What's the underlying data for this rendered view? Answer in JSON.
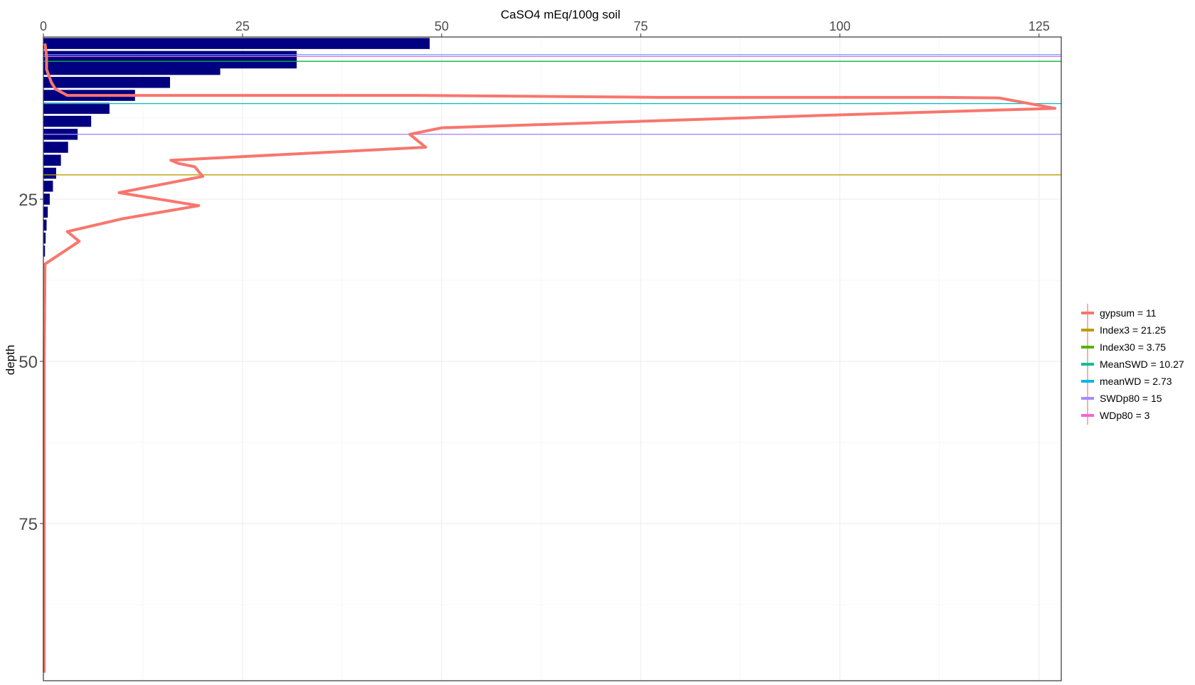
{
  "chart_data": {
    "type": "bar",
    "title": "CaSO4 mEq/100g soil",
    "ylabel": "depth",
    "xlabel": "",
    "xlim": [
      0,
      127
    ],
    "ylim": [
      0,
      100
    ],
    "y_reversed": true,
    "x_axis_position": "top",
    "x_ticks": [
      0,
      25,
      50,
      75,
      100,
      125
    ],
    "x_tick_labels": [
      "0",
      "25",
      "50",
      "75",
      "100",
      "125"
    ],
    "y_ticks": [
      25,
      50,
      75
    ],
    "y_tick_labels": [
      "25",
      "50",
      "75"
    ],
    "grid": true,
    "legend_position": "right",
    "bars": {
      "color": "#000080",
      "depth": [
        1,
        3,
        4,
        5,
        7,
        9,
        11,
        13,
        15,
        17,
        19,
        21,
        23,
        25,
        27,
        29,
        31,
        33
      ],
      "values": [
        48.5,
        31.8,
        31.8,
        22.2,
        15.9,
        11.5,
        8.3,
        6.0,
        4.3,
        3.1,
        2.2,
        1.6,
        1.2,
        0.8,
        0.55,
        0.4,
        0.28,
        0.2
      ]
    },
    "series": [
      {
        "name": "gypsum = 11",
        "color": "#F8766D",
        "kind": "profile",
        "points": [
          [
            0.2,
            1
          ],
          [
            0.4,
            3
          ],
          [
            0.4,
            5
          ],
          [
            1,
            7
          ],
          [
            1.5,
            8
          ],
          [
            3,
            9
          ],
          [
            16,
            9
          ],
          [
            47,
            9
          ],
          [
            77,
            9.3
          ],
          [
            113,
            9.3
          ],
          [
            120,
            9.4
          ],
          [
            127,
            11
          ],
          [
            100,
            12
          ],
          [
            75,
            13
          ],
          [
            50,
            14
          ],
          [
            46,
            15
          ],
          [
            48,
            17
          ],
          [
            16,
            19
          ],
          [
            17,
            19.5
          ],
          [
            19,
            20
          ],
          [
            20,
            21.5
          ],
          [
            9.5,
            24
          ],
          [
            19.5,
            26
          ],
          [
            10,
            28
          ],
          [
            3,
            30
          ],
          [
            4.5,
            31.5
          ],
          [
            0.2,
            35
          ],
          [
            0.1,
            50
          ],
          [
            0.1,
            75
          ],
          [
            0.1,
            98
          ]
        ]
      },
      {
        "name": "Index3 =  21.25",
        "color": "#B79F00",
        "kind": "hline",
        "depth": 21.25
      },
      {
        "name": "Index30 =  3.75",
        "color": "#00BA38",
        "kind": "hline",
        "depth": 3.75
      },
      {
        "name": "MeanSWD =  10.27",
        "color": "#00BFC4",
        "kind": "hline",
        "depth": 10.27
      },
      {
        "name": "meanWD =  2.73",
        "color": "#619CFF",
        "kind": "hline",
        "depth": 2.73
      },
      {
        "name": "SWDp80 =  15",
        "color": "#A58AFF",
        "kind": "hline",
        "depth": 15
      },
      {
        "name": "WDp80 = 3",
        "color": "#F564E3",
        "kind": "hline",
        "depth": 3
      }
    ],
    "legend": [
      {
        "label": "gypsum = 11",
        "color": "#F8766D"
      },
      {
        "label": "Index3 =  21.25",
        "color": "#B79F00"
      },
      {
        "label": "Index30 =  3.75",
        "color": "#53B400"
      },
      {
        "label": "MeanSWD =  10.27",
        "color": "#00C094"
      },
      {
        "label": "meanWD =  2.73",
        "color": "#00B6EB"
      },
      {
        "label": "SWDp80 =  15",
        "color": "#A58AFF"
      },
      {
        "label": "WDp80 = 3",
        "color": "#FB61D7"
      }
    ]
  }
}
